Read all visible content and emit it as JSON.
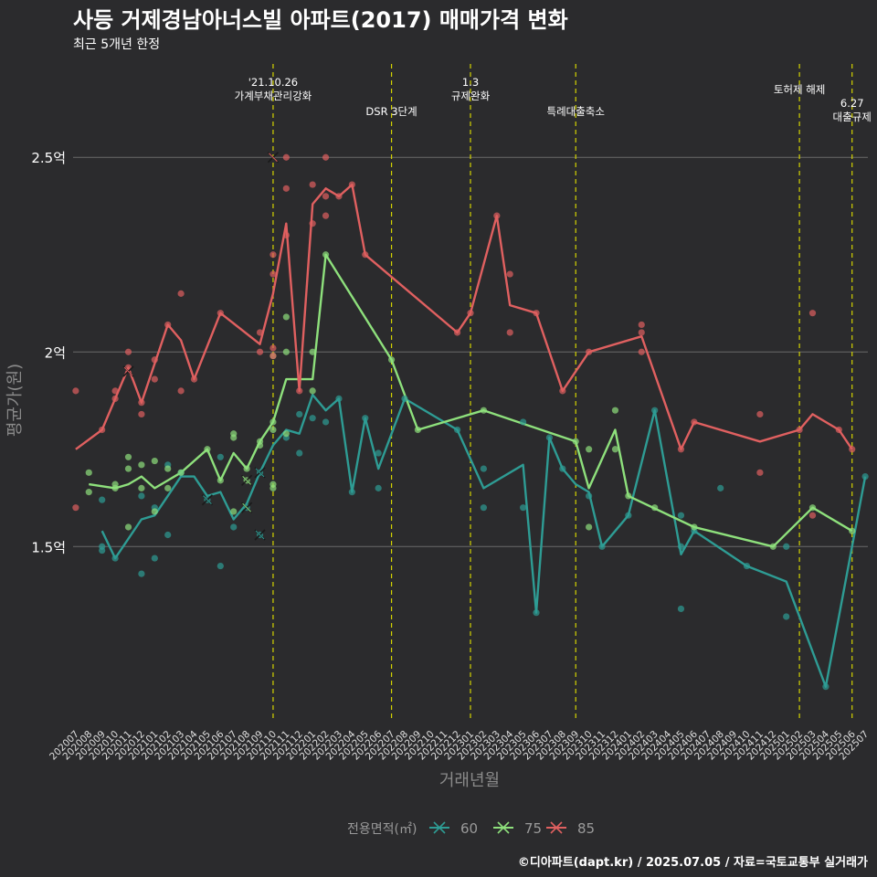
{
  "chart_data": {
    "type": "line",
    "title": "사등 거제경남아너스빌 아파트(2017) 매매가격 변화",
    "subtitle": "최근 5개년 한정",
    "xlabel": "거래년월",
    "ylabel": "평균가(원)",
    "caption": "©디아파트(dapt.kr) / 2025.07.05 / 자료=국토교통부 실거래가",
    "legend": {
      "title": "전용면적(㎡)",
      "position": "bottom",
      "entries": [
        "60",
        "75",
        "85"
      ]
    },
    "grid": true,
    "ylim": [
      1.05,
      2.74
    ],
    "y_ticks": [
      {
        "value": 1.5,
        "label": "1.5억"
      },
      {
        "value": 2.0,
        "label": "2억"
      },
      {
        "value": 2.5,
        "label": "2.5억"
      }
    ],
    "x": [
      "202007",
      "202008",
      "202009",
      "202010",
      "202011",
      "202012",
      "202101",
      "202102",
      "202103",
      "202104",
      "202105",
      "202106",
      "202107",
      "202108",
      "202109",
      "202110",
      "202111",
      "202112",
      "202201",
      "202202",
      "202203",
      "202204",
      "202205",
      "202206",
      "202207",
      "202208",
      "202209",
      "202210",
      "202211",
      "202212",
      "202301",
      "202302",
      "202303",
      "202304",
      "202305",
      "202306",
      "202307",
      "202308",
      "202309",
      "202310",
      "202311",
      "202312",
      "202401",
      "202402",
      "202403",
      "202404",
      "202405",
      "202406",
      "202407",
      "202408",
      "202409",
      "202410",
      "202411",
      "202412",
      "202501",
      "202502",
      "202503",
      "202504",
      "202505",
      "202506",
      "202507"
    ],
    "colors": {
      "60": "#2e9c94",
      "75": "#8ee07c",
      "85": "#e06060"
    },
    "series": [
      {
        "name": "60",
        "line": [
          [
            "202009",
            1.54
          ],
          [
            "202010",
            1.47
          ],
          [
            "202012",
            1.57
          ],
          [
            "202101",
            1.58
          ],
          [
            "202103",
            1.68
          ],
          [
            "202104",
            1.68
          ],
          [
            "202105",
            1.63
          ],
          [
            "202106",
            1.64
          ],
          [
            "202107",
            1.57
          ],
          [
            "202108",
            1.61
          ],
          [
            "202109",
            1.69
          ],
          [
            "202110",
            1.76
          ],
          [
            "202111",
            1.8
          ],
          [
            "202112",
            1.79
          ],
          [
            "202201",
            1.89
          ],
          [
            "202202",
            1.85
          ],
          [
            "202203",
            1.88
          ],
          [
            "202204",
            1.64
          ],
          [
            "202205",
            1.83
          ],
          [
            "202206",
            1.7
          ],
          [
            "202208",
            1.88
          ],
          [
            "202212",
            1.8
          ],
          [
            "202302",
            1.65
          ],
          [
            "202305",
            1.71
          ],
          [
            "202306",
            1.33
          ],
          [
            "202307",
            1.78
          ],
          [
            "202308",
            1.7
          ],
          [
            "202309",
            1.66
          ],
          [
            "202310",
            1.64
          ],
          [
            "202311",
            1.5
          ],
          [
            "202401",
            1.58
          ],
          [
            "202403",
            1.85
          ],
          [
            "202405",
            1.48
          ],
          [
            "202406",
            1.54
          ],
          [
            "202410",
            1.45
          ],
          [
            "202501",
            1.41
          ],
          [
            "202504",
            1.14
          ],
          [
            "202507",
            1.68
          ]
        ],
        "points": [
          [
            "202009",
            1.5
          ],
          [
            "202009",
            1.49
          ],
          [
            "202009",
            1.62
          ],
          [
            "202010",
            1.47
          ],
          [
            "202012",
            1.63
          ],
          [
            "202012",
            1.43
          ],
          [
            "202101",
            1.47
          ],
          [
            "202101",
            1.6
          ],
          [
            "202102",
            1.71
          ],
          [
            "202102",
            1.53
          ],
          [
            "202103",
            1.69
          ],
          [
            "202105",
            1.62
          ],
          [
            "202106",
            1.73
          ],
          [
            "202106",
            1.45
          ],
          [
            "202107",
            1.55
          ],
          [
            "202108",
            1.6
          ],
          [
            "202109",
            1.53
          ],
          [
            "202109",
            1.69
          ],
          [
            "202111",
            1.78
          ],
          [
            "202112",
            1.74
          ],
          [
            "202112",
            1.84
          ],
          [
            "202201",
            1.83
          ],
          [
            "202202",
            1.82
          ],
          [
            "202203",
            1.88
          ],
          [
            "202204",
            1.64
          ],
          [
            "202205",
            1.83
          ],
          [
            "202206",
            1.65
          ],
          [
            "202206",
            1.74
          ],
          [
            "202208",
            1.88
          ],
          [
            "202212",
            1.8
          ],
          [
            "202302",
            1.7
          ],
          [
            "202302",
            1.6
          ],
          [
            "202305",
            1.82
          ],
          [
            "202305",
            1.6
          ],
          [
            "202306",
            1.33
          ],
          [
            "202307",
            1.78
          ],
          [
            "202308",
            1.7
          ],
          [
            "202310",
            1.63
          ],
          [
            "202311",
            1.5
          ],
          [
            "202401",
            1.58
          ],
          [
            "202403",
            1.85
          ],
          [
            "202405",
            1.58
          ],
          [
            "202405",
            1.34
          ],
          [
            "202405",
            1.5
          ],
          [
            "202406",
            1.54
          ],
          [
            "202408",
            1.65
          ],
          [
            "202410",
            1.45
          ],
          [
            "202501",
            1.32
          ],
          [
            "202501",
            1.5
          ],
          [
            "202504",
            1.14
          ],
          [
            "202507",
            1.68
          ]
        ],
        "cross_points": [
          [
            "202105",
            1.62
          ],
          [
            "202109",
            1.53
          ],
          [
            "202109",
            1.69
          ]
        ]
      },
      {
        "name": "75",
        "line": [
          [
            "202008",
            1.66
          ],
          [
            "202010",
            1.65
          ],
          [
            "202011",
            1.66
          ],
          [
            "202012",
            1.68
          ],
          [
            "202101",
            1.65
          ],
          [
            "202102",
            1.67
          ],
          [
            "202103",
            1.69
          ],
          [
            "202105",
            1.75
          ],
          [
            "202106",
            1.67
          ],
          [
            "202107",
            1.74
          ],
          [
            "202108",
            1.7
          ],
          [
            "202109",
            1.77
          ],
          [
            "202110",
            1.82
          ],
          [
            "202111",
            1.93
          ],
          [
            "202201",
            1.93
          ],
          [
            "202202",
            2.25
          ],
          [
            "202207",
            1.98
          ],
          [
            "202209",
            1.8
          ],
          [
            "202302",
            1.85
          ],
          [
            "202309",
            1.77
          ],
          [
            "202310",
            1.65
          ],
          [
            "202312",
            1.8
          ],
          [
            "202401",
            1.63
          ],
          [
            "202406",
            1.55
          ],
          [
            "202412",
            1.5
          ],
          [
            "202503",
            1.6
          ],
          [
            "202506",
            1.54
          ]
        ],
        "points": [
          [
            "202008",
            1.69
          ],
          [
            "202008",
            1.64
          ],
          [
            "202010",
            1.65
          ],
          [
            "202010",
            1.66
          ],
          [
            "202011",
            1.73
          ],
          [
            "202011",
            1.7
          ],
          [
            "202011",
            1.55
          ],
          [
            "202012",
            1.71
          ],
          [
            "202012",
            1.65
          ],
          [
            "202101",
            1.72
          ],
          [
            "202101",
            1.59
          ],
          [
            "202102",
            1.7
          ],
          [
            "202102",
            1.65
          ],
          [
            "202103",
            1.69
          ],
          [
            "202105",
            1.75
          ],
          [
            "202106",
            1.67
          ],
          [
            "202107",
            1.79
          ],
          [
            "202107",
            1.78
          ],
          [
            "202107",
            1.59
          ],
          [
            "202108",
            1.7
          ],
          [
            "202108",
            1.67
          ],
          [
            "202109",
            1.77
          ],
          [
            "202109",
            1.76
          ],
          [
            "202110",
            1.99
          ],
          [
            "202110",
            1.66
          ],
          [
            "202110",
            1.65
          ],
          [
            "202110",
            1.8
          ],
          [
            "202110",
            1.82
          ],
          [
            "202111",
            2.09
          ],
          [
            "202111",
            2.0
          ],
          [
            "202111",
            1.79
          ],
          [
            "202201",
            2.0
          ],
          [
            "202201",
            1.9
          ],
          [
            "202202",
            2.25
          ],
          [
            "202207",
            1.98
          ],
          [
            "202209",
            1.8
          ],
          [
            "202302",
            1.85
          ],
          [
            "202309",
            1.77
          ],
          [
            "202310",
            1.75
          ],
          [
            "202310",
            1.55
          ],
          [
            "202312",
            1.85
          ],
          [
            "202312",
            1.75
          ],
          [
            "202401",
            1.63
          ],
          [
            "202403",
            1.6
          ],
          [
            "202406",
            1.55
          ],
          [
            "202412",
            1.5
          ],
          [
            "202503",
            1.6
          ],
          [
            "202506",
            1.54
          ]
        ],
        "cross_points": [
          [
            "202108",
            1.67
          ],
          [
            "202108",
            1.6
          ]
        ]
      },
      {
        "name": "85",
        "line": [
          [
            "202007",
            1.75
          ],
          [
            "202009",
            1.8
          ],
          [
            "202011",
            1.96
          ],
          [
            "202012",
            1.87
          ],
          [
            "202102",
            2.07
          ],
          [
            "202103",
            2.03
          ],
          [
            "202104",
            1.93
          ],
          [
            "202106",
            2.1
          ],
          [
            "202109",
            2.02
          ],
          [
            "202110",
            2.15
          ],
          [
            "202111",
            2.33
          ],
          [
            "202112",
            1.9
          ],
          [
            "202201",
            2.38
          ],
          [
            "202202",
            2.42
          ],
          [
            "202203",
            2.4
          ],
          [
            "202204",
            2.43
          ],
          [
            "202205",
            2.25
          ],
          [
            "202212",
            2.05
          ],
          [
            "202301",
            2.1
          ],
          [
            "202303",
            2.35
          ],
          [
            "202304",
            2.12
          ],
          [
            "202306",
            2.1
          ],
          [
            "202308",
            1.9
          ],
          [
            "202310",
            2.0
          ],
          [
            "202402",
            2.04
          ],
          [
            "202405",
            1.75
          ],
          [
            "202406",
            1.82
          ],
          [
            "202411",
            1.77
          ],
          [
            "202502",
            1.8
          ],
          [
            "202503",
            1.84
          ],
          [
            "202505",
            1.8
          ],
          [
            "202506",
            1.75
          ]
        ],
        "points": [
          [
            "202007",
            1.9
          ],
          [
            "202007",
            1.6
          ],
          [
            "202009",
            1.8
          ],
          [
            "202010",
            1.9
          ],
          [
            "202010",
            1.88
          ],
          [
            "202011",
            2.0
          ],
          [
            "202011",
            1.96
          ],
          [
            "202012",
            1.87
          ],
          [
            "202012",
            1.84
          ],
          [
            "202101",
            1.93
          ],
          [
            "202101",
            1.98
          ],
          [
            "202102",
            2.07
          ],
          [
            "202103",
            2.15
          ],
          [
            "202103",
            1.9
          ],
          [
            "202104",
            1.93
          ],
          [
            "202106",
            2.1
          ],
          [
            "202109",
            2.05
          ],
          [
            "202109",
            2.0
          ],
          [
            "202110",
            2.25
          ],
          [
            "202110",
            2.2
          ],
          [
            "202110",
            2.01
          ],
          [
            "202110",
            1.99
          ],
          [
            "202111",
            2.5
          ],
          [
            "202111",
            2.42
          ],
          [
            "202111",
            2.3
          ],
          [
            "202112",
            1.9
          ],
          [
            "202201",
            2.43
          ],
          [
            "202201",
            2.33
          ],
          [
            "202202",
            2.5
          ],
          [
            "202202",
            2.4
          ],
          [
            "202202",
            2.35
          ],
          [
            "202203",
            2.4
          ],
          [
            "202204",
            2.43
          ],
          [
            "202205",
            2.25
          ],
          [
            "202212",
            2.05
          ],
          [
            "202301",
            2.1
          ],
          [
            "202303",
            2.35
          ],
          [
            "202304",
            2.2
          ],
          [
            "202304",
            2.05
          ],
          [
            "202306",
            2.1
          ],
          [
            "202308",
            1.9
          ],
          [
            "202310",
            2.0
          ],
          [
            "202402",
            2.07
          ],
          [
            "202402",
            2.05
          ],
          [
            "202402",
            2.0
          ],
          [
            "202405",
            1.75
          ],
          [
            "202406",
            1.82
          ],
          [
            "202411",
            1.84
          ],
          [
            "202411",
            1.69
          ],
          [
            "202502",
            1.8
          ],
          [
            "202503",
            2.1
          ],
          [
            "202503",
            1.58
          ],
          [
            "202505",
            1.8
          ],
          [
            "202506",
            1.75
          ]
        ],
        "cross_points": [
          [
            "202011",
            1.95
          ],
          [
            "202110",
            2.5
          ]
        ]
      }
    ],
    "events": [
      {
        "x": "202110",
        "lines": [
          "'21.10.26",
          "가계부채관리강화"
        ],
        "level": 0
      },
      {
        "x": "202207",
        "lines": [
          "DSR 3단계"
        ],
        "level": 2
      },
      {
        "x": "202301",
        "lines": [
          "1.3",
          "규제완화"
        ],
        "level": 0
      },
      {
        "x": "202309",
        "lines": [
          "특례대출축소"
        ],
        "level": 2
      },
      {
        "x": "202502",
        "lines": [
          "토허제 해제"
        ],
        "level": 1
      },
      {
        "x": "202506",
        "lines": [
          "6.27",
          "대출규제"
        ],
        "level": 3
      }
    ]
  }
}
